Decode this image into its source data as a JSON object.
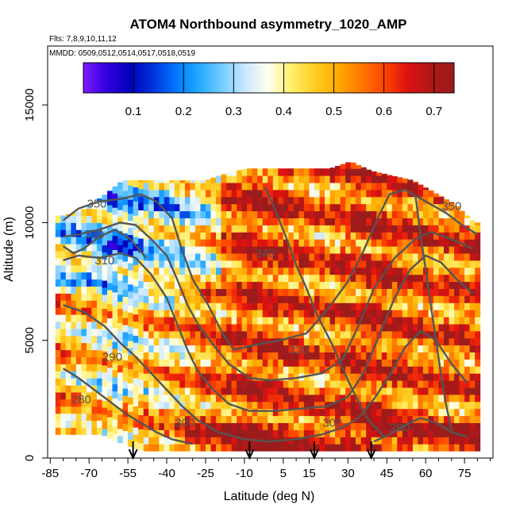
{
  "chart_data": {
    "type": "heatmap",
    "title": "ATOM4 Northbound asymmetry_1020_AMP",
    "annotation_flights": "Flts: 7,8,9,10,11,12",
    "annotation_dates": "MMDD: 0509,0512,0514,0517,0518,0519",
    "xlabel": "Latitude (deg N)",
    "ylabel": "Altitude (m)",
    "xlim": [
      -86,
      86
    ],
    "ylim": [
      0,
      17500
    ],
    "x_ticks": [
      -85,
      -70,
      -55,
      -40,
      -25,
      -10,
      5,
      15,
      30,
      45,
      60,
      75
    ],
    "x_ticks_labels": [
      "-85",
      "-70",
      "-55",
      "-40",
      "-25",
      "-10",
      "5",
      "15",
      "30",
      "45",
      "60",
      "75"
    ],
    "x_minor_ticks": [
      -80,
      -75,
      -65,
      -60,
      -50,
      -45,
      -35,
      -30,
      -20,
      -15,
      -5,
      0,
      10,
      20,
      25,
      35,
      40,
      50,
      55,
      65,
      70,
      80,
      85
    ],
    "y_ticks": [
      0,
      5000,
      10000,
      15000
    ],
    "y_ticks_labels": [
      "0",
      "5000",
      "10000",
      "15000"
    ],
    "colorbar": {
      "range": [
        0.0,
        0.74
      ],
      "ticks": [
        0.1,
        0.2,
        0.3,
        0.4,
        0.5,
        0.6,
        0.7
      ],
      "tick_labels": [
        "0.1",
        "0.2",
        "0.3",
        "0.4",
        "0.5",
        "0.6",
        "0.7"
      ],
      "colors": [
        "#7f1aff",
        "#3300dd",
        "#0000bb",
        "#0033dd",
        "#0077ff",
        "#22aaff",
        "#77ccff",
        "#cce8ff",
        "#ffffee",
        "#ffee66",
        "#ffcc22",
        "#ffaa00",
        "#ff7700",
        "#ff4400",
        "#dd1111",
        "#b01818",
        "#9b1c1c"
      ]
    },
    "arrows_latitude": [
      -53,
      -8,
      17,
      39
    ],
    "contour_labels": [
      {
        "text": "350",
        "lat": -67,
        "alt": 10800
      },
      {
        "text": "330",
        "lat": -68,
        "alt": 9500
      },
      {
        "text": "310",
        "lat": -64,
        "alt": 8400
      },
      {
        "text": "340",
        "lat": -2,
        "alt": 8700
      },
      {
        "text": "320",
        "lat": 11,
        "alt": 4600
      },
      {
        "text": "290",
        "lat": -61,
        "alt": 4300
      },
      {
        "text": "280",
        "lat": -73,
        "alt": 2500
      },
      {
        "text": "300",
        "lat": -33,
        "alt": 1500
      },
      {
        "text": "300",
        "lat": 24,
        "alt": 1500
      },
      {
        "text": "290",
        "lat": 50,
        "alt": 1300
      },
      {
        "text": "350",
        "lat": 70,
        "alt": 10700
      }
    ],
    "envelope": {
      "lat": [
        -81,
        -74,
        -66,
        -58,
        -50,
        -42,
        -34,
        -26,
        -18,
        -10,
        -2,
        6,
        14,
        22,
        30,
        38,
        46,
        54,
        62,
        70,
        78
      ],
      "top_alt": [
        10300,
        10500,
        11100,
        11800,
        11800,
        11800,
        11800,
        11800,
        12100,
        12300,
        12300,
        12300,
        12300,
        12300,
        12600,
        12200,
        12000,
        11800,
        11300,
        10800,
        10000
      ],
      "bottom_alt": [
        1000,
        1000,
        1000,
        600,
        300,
        300,
        300,
        300,
        300,
        300,
        300,
        300,
        300,
        300,
        300,
        300,
        300,
        300,
        300,
        300,
        300
      ]
    },
    "amplitude_profile": {
      "lat": [
        -82,
        -75,
        -68,
        -61,
        -54,
        -47,
        -40,
        -33,
        -26,
        -19,
        -12,
        -5,
        2,
        9,
        16,
        23,
        30,
        37,
        44,
        51,
        58,
        65,
        72,
        79
      ],
      "mean_amplitude": [
        0.48,
        0.45,
        0.43,
        0.4,
        0.42,
        0.46,
        0.47,
        0.5,
        0.55,
        0.57,
        0.6,
        0.62,
        0.61,
        0.58,
        0.55,
        0.56,
        0.6,
        0.62,
        0.6,
        0.58,
        0.57,
        0.56,
        0.58,
        0.6
      ]
    }
  }
}
